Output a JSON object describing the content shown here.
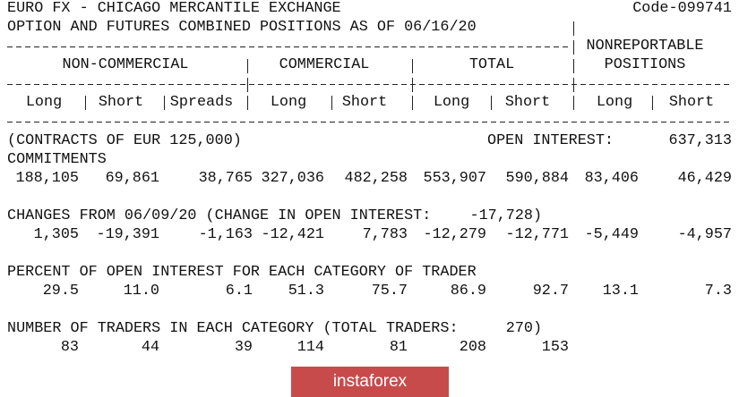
{
  "header": {
    "title": "EURO FX - CHICAGO MERCANTILE EXCHANGE",
    "code": "Code-099741",
    "subtitle": "OPTION AND FUTURES COMBINED POSITIONS AS OF 06/16/20"
  },
  "columns": {
    "groups": [
      "NON-COMMERCIAL",
      "COMMERCIAL",
      "TOTAL"
    ],
    "nonreportable": [
      "NONREPORTABLE",
      "POSITIONS"
    ],
    "subheaders": [
      "Long",
      "Short",
      "Spreads",
      "Long",
      "Short",
      "Long",
      "Short",
      "Long",
      "Short"
    ]
  },
  "contracts": {
    "label": "(CONTRACTS OF EUR 125,000)",
    "open_interest_label": "OPEN INTEREST:",
    "open_interest": "637,313"
  },
  "commitments": {
    "label": "COMMITMENTS",
    "values": [
      "188,105",
      "69,861",
      "38,765",
      "327,036",
      "482,258",
      "553,907",
      "590,884",
      "83,406",
      "46,429"
    ]
  },
  "changes": {
    "label": "CHANGES FROM 06/09/20 (CHANGE IN OPEN INTEREST:",
    "change": "-17,728",
    "close": ")",
    "values": [
      "1,305",
      "-19,391",
      "-1,163",
      "-12,421",
      "7,783",
      "-12,279",
      "-12,771",
      "-5,449",
      "-4,957"
    ]
  },
  "percent": {
    "label": "PERCENT OF OPEN INTEREST FOR EACH CATEGORY OF TRADER",
    "values": [
      "29.5",
      "11.0",
      "6.1",
      "51.3",
      "75.7",
      "86.9",
      "92.7",
      "13.1",
      "7.3"
    ]
  },
  "traders": {
    "label": "NUMBER OF TRADERS IN EACH CATEGORY (TOTAL TRADERS:",
    "total": "270",
    "close": ")",
    "values": [
      "83",
      "44",
      "39",
      "114",
      "81",
      "208",
      "153"
    ]
  },
  "watermark": "instaforex"
}
